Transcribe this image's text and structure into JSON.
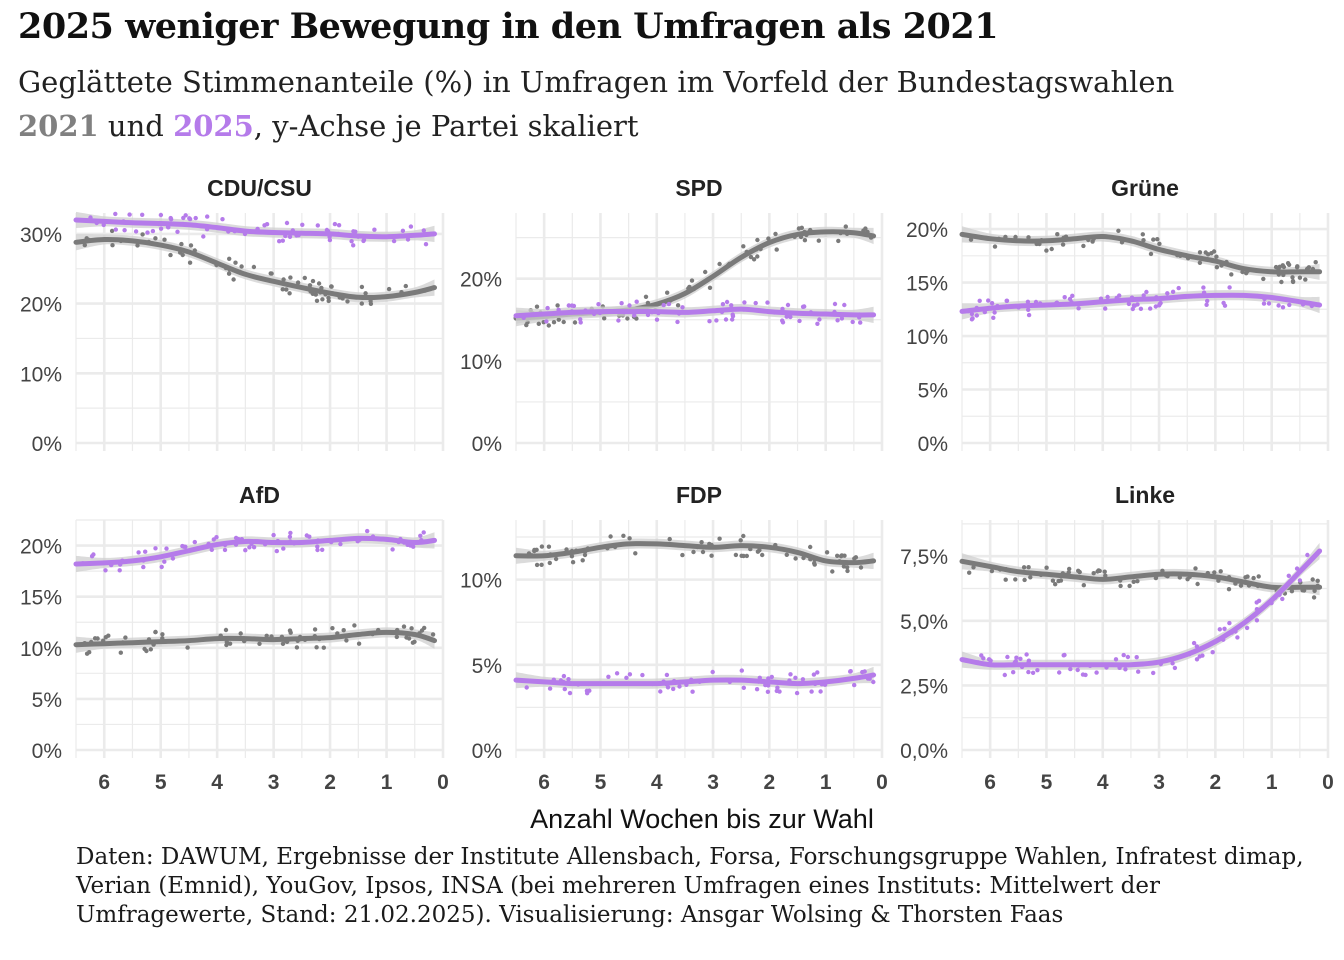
{
  "title": "2025 weniger Bewegung in den Umfragen als 2021",
  "subtitle": {
    "line1": "Geglättete Stimmenanteile (%) in Umfragen im Vorfeld der Bundestagswahlen",
    "year_2021": "2021",
    "und": " und ",
    "year_2025": "2025",
    "rest": ", y-Achse je Partei skaliert"
  },
  "caption": "Daten: DAWUM, Ergebnisse der Institute Allensbach, Forsa, Forschungsgruppe Wahlen, Infratest dimap, Verian (Emnid), YouGov, Ipsos, INSA (bei mehreren Umfragen eines Instituts: Mittelwert der Umfragewerte, Stand: 21.02.2025). Visualisierung: Ansgar Wolsing & Thorsten Faas",
  "colors": {
    "y2021": "#7a7a7a",
    "y2025": "#b57bea",
    "band": "#cfcfcf",
    "grid": "#ebebeb"
  },
  "chart_data": {
    "type": "line",
    "xlabel": "Anzahl Wochen bis zur Wahl",
    "x_reversed": true,
    "xlim": [
      6.5,
      0
    ],
    "x_ticks": [
      6,
      5,
      4,
      3,
      2,
      1,
      0
    ],
    "series_years": [
      "2021",
      "2025"
    ],
    "panels": [
      {
        "party": "CDU/CSU",
        "ylim": [
          0,
          33
        ],
        "yticks": [
          0,
          10,
          20,
          30
        ],
        "ytick_labels": [
          "0%",
          "10%",
          "20%",
          "30%"
        ],
        "series": [
          {
            "name": "2021",
            "x": [
              6.5,
              6,
              5.5,
              5,
              4.5,
              4,
              3.5,
              3,
              2.5,
              2,
              1.5,
              1,
              0.5,
              0.15
            ],
            "y": [
              28.8,
              29.2,
              29.0,
              28.4,
              27.4,
              25.8,
              24.2,
              23.2,
              22.3,
              21.5,
              20.9,
              21.0,
              21.6,
              22.3
            ]
          },
          {
            "name": "2025",
            "x": [
              6.5,
              6,
              5.5,
              5,
              4.5,
              4,
              3.5,
              3,
              2.5,
              2,
              1.5,
              1,
              0.5,
              0.15
            ],
            "y": [
              32.0,
              31.8,
              31.6,
              31.5,
              31.3,
              30.9,
              30.4,
              30.2,
              30.1,
              30.0,
              29.7,
              29.6,
              29.8,
              30.0
            ]
          }
        ]
      },
      {
        "party": "SPD",
        "ylim": [
          0,
          28
        ],
        "yticks": [
          0,
          10,
          20
        ],
        "ytick_labels": [
          "0%",
          "10%",
          "20%"
        ],
        "series": [
          {
            "name": "2021",
            "x": [
              6.5,
              6,
              5.5,
              5,
              4.5,
              4,
              3.5,
              3,
              2.5,
              2,
              1.5,
              1,
              0.5,
              0.15
            ],
            "y": [
              15.2,
              15.4,
              15.7,
              15.9,
              16.2,
              16.9,
              18.2,
              20.3,
              22.6,
              24.4,
              25.4,
              25.7,
              25.6,
              25.2
            ]
          },
          {
            "name": "2025",
            "x": [
              6.5,
              6,
              5.5,
              5,
              4.5,
              4,
              3.5,
              3,
              2.5,
              2,
              1.5,
              1,
              0.5,
              0.15
            ],
            "y": [
              15.5,
              15.7,
              15.9,
              16.0,
              16.0,
              16.0,
              15.9,
              16.1,
              16.3,
              16.0,
              15.8,
              15.7,
              15.6,
              15.6
            ]
          }
        ]
      },
      {
        "party": "Grüne",
        "ylim": [
          0,
          21.5
        ],
        "yticks": [
          0,
          5,
          10,
          15,
          20
        ],
        "ytick_labels": [
          "0%",
          "5%",
          "10%",
          "15%",
          "20%"
        ],
        "series": [
          {
            "name": "2021",
            "x": [
              6.5,
              6,
              5.5,
              5,
              4.5,
              4,
              3.5,
              3,
              2.5,
              2,
              1.5,
              1,
              0.5,
              0.15
            ],
            "y": [
              19.5,
              19.1,
              18.9,
              18.9,
              19.1,
              19.3,
              18.9,
              18.1,
              17.5,
              17.0,
              16.3,
              16.0,
              16.0,
              16.0
            ]
          },
          {
            "name": "2025",
            "x": [
              6.5,
              6,
              5.5,
              5,
              4.5,
              4,
              3.5,
              3,
              2.5,
              2,
              1.5,
              1,
              0.5,
              0.15
            ],
            "y": [
              12.3,
              12.6,
              12.8,
              12.9,
              13.0,
              13.2,
              13.4,
              13.5,
              13.7,
              13.8,
              13.8,
              13.6,
              13.2,
              12.9
            ]
          }
        ]
      },
      {
        "party": "AfD",
        "ylim": [
          0,
          22.5
        ],
        "yticks": [
          0,
          5,
          10,
          15,
          20
        ],
        "ytick_labels": [
          "0%",
          "5%",
          "10%",
          "15%",
          "20%"
        ],
        "series": [
          {
            "name": "2021",
            "x": [
              6.5,
              6,
              5.5,
              5,
              4.5,
              4,
              3.5,
              3,
              2.5,
              2,
              1.5,
              1,
              0.5,
              0.15
            ],
            "y": [
              10.3,
              10.4,
              10.5,
              10.6,
              10.7,
              10.9,
              10.9,
              10.8,
              10.9,
              11.0,
              11.3,
              11.5,
              11.3,
              10.7
            ]
          },
          {
            "name": "2025",
            "x": [
              6.5,
              6,
              5.5,
              5,
              4.5,
              4,
              3.5,
              3,
              2.5,
              2,
              1.5,
              1,
              0.5,
              0.15
            ],
            "y": [
              18.2,
              18.3,
              18.5,
              18.9,
              19.5,
              20.1,
              20.4,
              20.3,
              20.3,
              20.5,
              20.7,
              20.6,
              20.3,
              20.5
            ]
          }
        ]
      },
      {
        "party": "FDP",
        "ylim": [
          0,
          13.5
        ],
        "yticks": [
          0,
          5,
          10
        ],
        "ytick_labels": [
          "0%",
          "5%",
          "10%"
        ],
        "series": [
          {
            "name": "2021",
            "x": [
              6.5,
              6,
              5.5,
              5,
              4.5,
              4,
              3.5,
              3,
              2.5,
              2,
              1.5,
              1,
              0.5,
              0.15
            ],
            "y": [
              11.4,
              11.4,
              11.6,
              11.9,
              12.1,
              12.1,
              12.0,
              11.9,
              12.0,
              11.9,
              11.6,
              11.1,
              11.0,
              11.1
            ]
          },
          {
            "name": "2025",
            "x": [
              6.5,
              6,
              5.5,
              5,
              4.5,
              4,
              3.5,
              3,
              2.5,
              2,
              1.5,
              1,
              0.5,
              0.15
            ],
            "y": [
              4.1,
              4.0,
              3.9,
              3.9,
              3.9,
              3.9,
              4.0,
              4.1,
              4.1,
              4.0,
              3.9,
              4.0,
              4.2,
              4.4
            ]
          }
        ]
      },
      {
        "party": "Linke",
        "ylim": [
          0,
          8.9
        ],
        "yticks": [
          0,
          2.5,
          5,
          7.5
        ],
        "ytick_labels": [
          "0,0%",
          "2,5%",
          "5,0%",
          "7,5%"
        ],
        "series": [
          {
            "name": "2021",
            "x": [
              6.5,
              6,
              5.5,
              5,
              4.5,
              4,
              3.5,
              3,
              2.5,
              2,
              1.5,
              1,
              0.5,
              0.15
            ],
            "y": [
              7.3,
              7.1,
              6.9,
              6.8,
              6.7,
              6.6,
              6.7,
              6.8,
              6.8,
              6.7,
              6.5,
              6.3,
              6.3,
              6.3
            ]
          },
          {
            "name": "2025",
            "x": [
              6.5,
              6,
              5.5,
              5,
              4.5,
              4,
              3.5,
              3,
              2.5,
              2,
              1.5,
              1,
              0.5,
              0.15
            ],
            "y": [
              3.5,
              3.3,
              3.3,
              3.3,
              3.3,
              3.3,
              3.3,
              3.4,
              3.7,
              4.2,
              4.9,
              5.8,
              6.9,
              7.7
            ]
          }
        ]
      }
    ]
  }
}
